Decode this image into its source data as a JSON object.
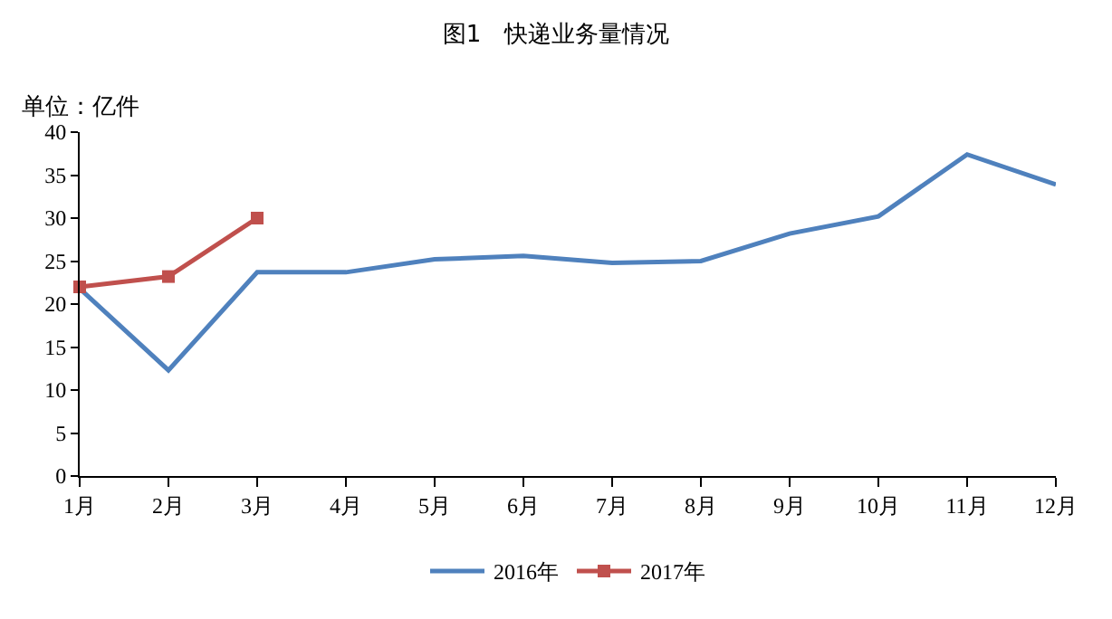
{
  "chart_data": {
    "type": "line",
    "title": "图1　快递业务量情况",
    "ylabel": "单位：亿件",
    "categories": [
      "1月",
      "2月",
      "3月",
      "4月",
      "5月",
      "6月",
      "7月",
      "8月",
      "9月",
      "10月",
      "11月",
      "12月"
    ],
    "series": [
      {
        "name": "2016年",
        "color": "#4f81bd",
        "marker": "none",
        "values": [
          21.8,
          12.3,
          23.7,
          23.7,
          25.2,
          25.6,
          24.8,
          25.0,
          28.2,
          30.2,
          37.4,
          33.9
        ]
      },
      {
        "name": "2017年",
        "color": "#c0504d",
        "marker": "square",
        "values": [
          22.0,
          23.2,
          30.0,
          null,
          null,
          null,
          null,
          null,
          null,
          null,
          null,
          null
        ]
      }
    ],
    "ylim": [
      0,
      40
    ],
    "yticks": [
      0,
      5,
      10,
      15,
      20,
      25,
      30,
      35,
      40
    ],
    "grid": false,
    "legend": "bottom"
  }
}
